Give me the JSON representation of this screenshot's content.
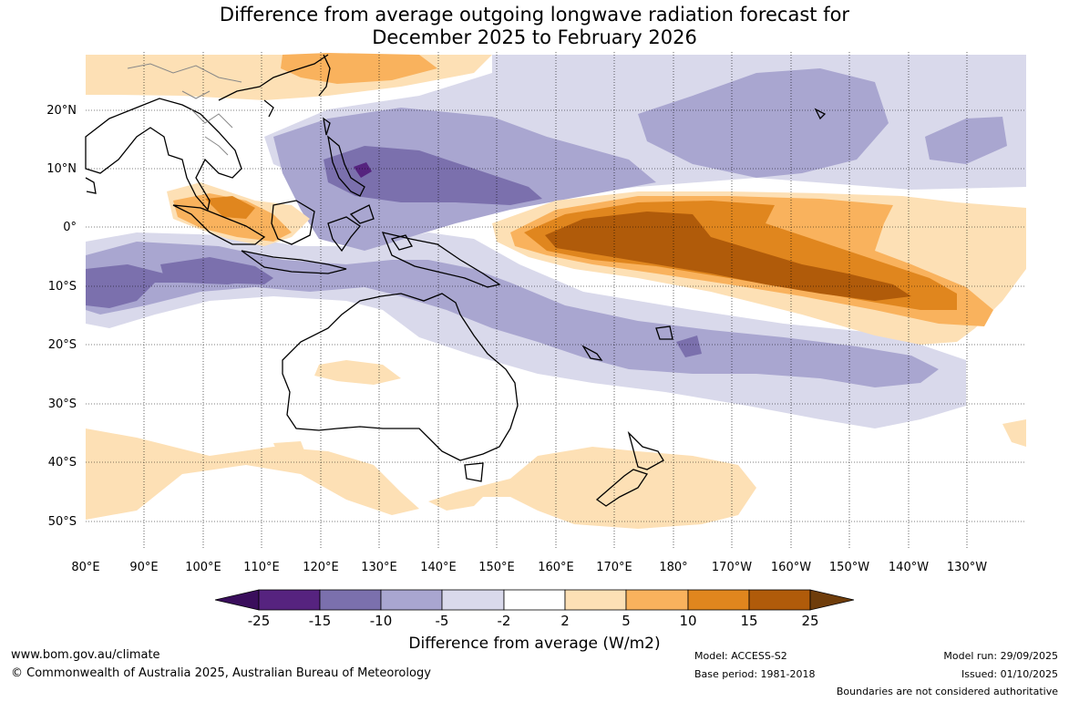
{
  "title": {
    "line1": "Difference from average outgoing longwave radiation forecast for",
    "line2": "December 2025 to February 2026"
  },
  "axes": {
    "lon_labels": [
      "80°E",
      "90°E",
      "100°E",
      "110°E",
      "120°E",
      "130°E",
      "140°E",
      "150°E",
      "160°E",
      "170°E",
      "180°",
      "170°W",
      "160°W",
      "150°W",
      "140°W",
      "130°W"
    ],
    "lat_labels": [
      "20°N",
      "10°N",
      "0°",
      "10°S",
      "20°S",
      "30°S",
      "40°S",
      "50°S"
    ]
  },
  "colorbar": {
    "ticks": [
      "-25",
      "-15",
      "-10",
      "-5",
      "-2",
      "2",
      "5",
      "10",
      "15",
      "25"
    ],
    "colors": [
      "#3a0e5c",
      "#56237f",
      "#7b70ad",
      "#a9a6d0",
      "#d9d9eb",
      "#ffffff",
      "#fde0b5",
      "#f9b25d",
      "#e0861e",
      "#b05b0a",
      "#6f3d0b"
    ],
    "label": "Difference from average (W/m2)"
  },
  "footer": {
    "url": "www.bom.gov.au/climate",
    "copyright": "© Commonwealth of Australia 2025, Australian Bureau of Meteorology",
    "model": "Model: ACCESS-S2",
    "base_period": "Base period: 1981-2018",
    "model_run": "Model run: 29/09/2025",
    "issued": "Issued: 01/10/2025",
    "disclaimer": "Boundaries are not considered authoritative"
  }
}
